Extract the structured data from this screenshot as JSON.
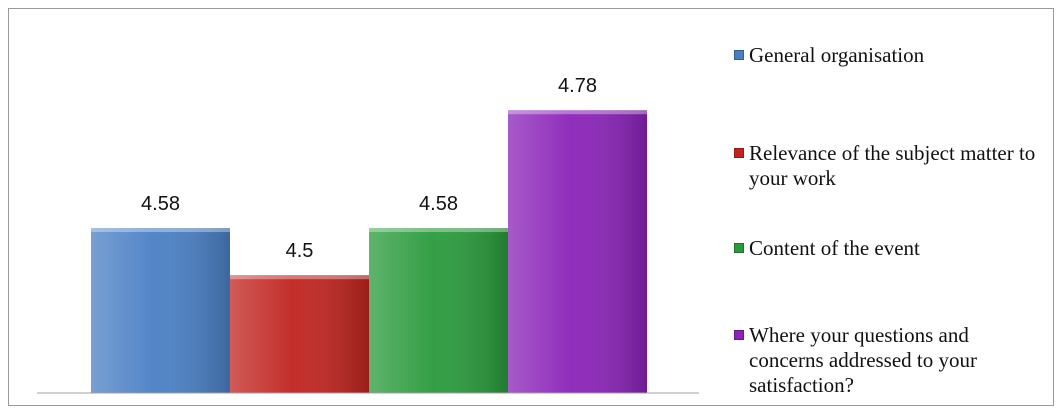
{
  "chart_data": {
    "type": "bar",
    "categories": [
      "General organisation",
      "Relevance of the subject matter to your work",
      "Content of the event",
      "Where your questions and concerns addressed to your satisfaction?"
    ],
    "values": [
      4.58,
      4.5,
      4.58,
      4.78
    ],
    "value_labels": [
      "4.58",
      "4.5",
      "4.58",
      "4.78"
    ],
    "colors": [
      "#4a7fc4",
      "#c0241f",
      "#2a9a3c",
      "#8a23b8"
    ],
    "ylim": [
      4.3,
      4.85
    ],
    "grid": false,
    "legend_position": "right",
    "title": "",
    "xlabel": "",
    "ylabel": ""
  },
  "legend": {
    "items": [
      "General organisation",
      "Relevance of the subject matter to your work",
      "Content of the event",
      "Where your questions and concerns addressed to your satisfaction?"
    ]
  }
}
